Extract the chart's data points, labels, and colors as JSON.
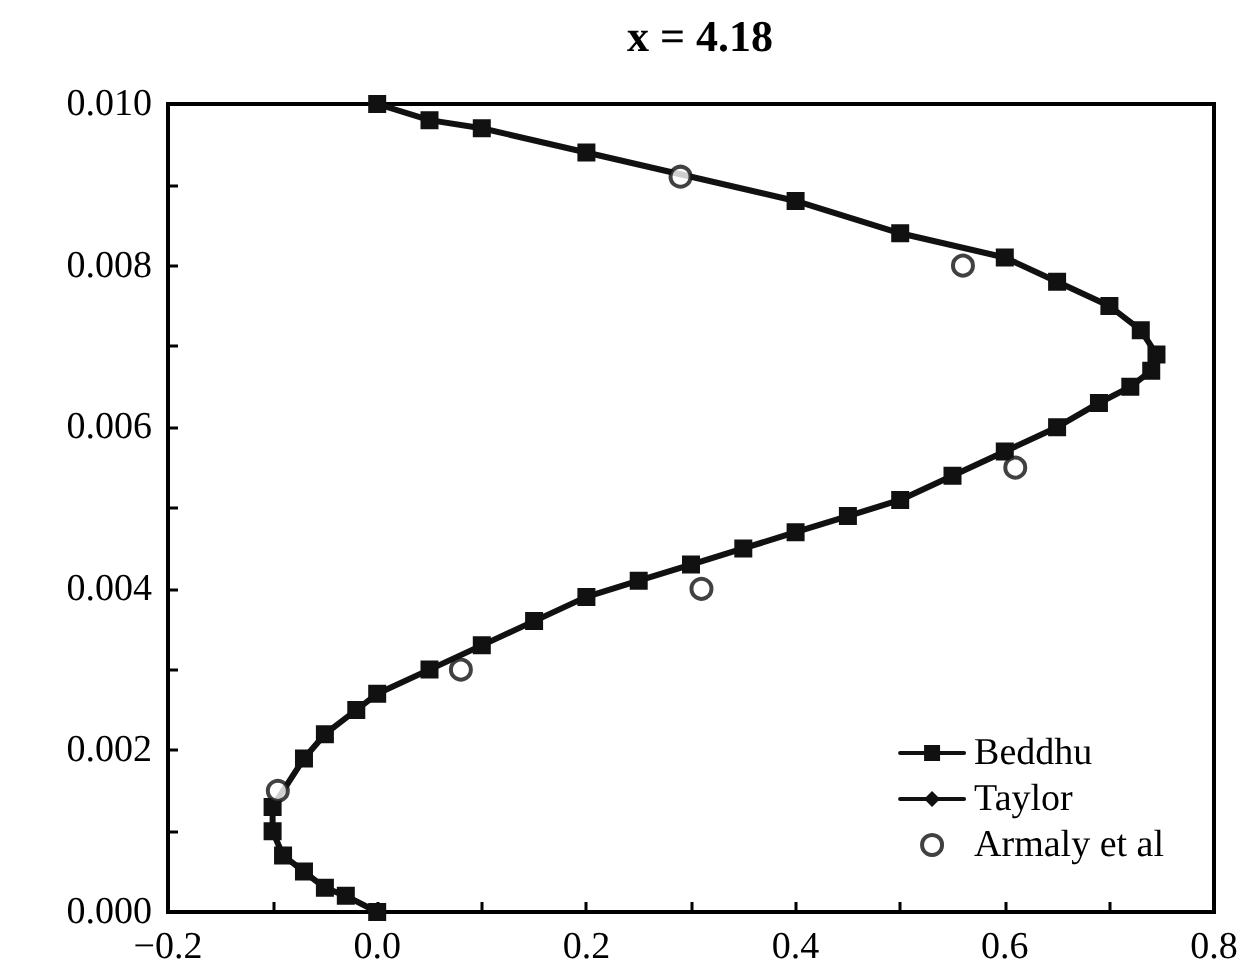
{
  "chart_data": {
    "type": "line",
    "title": "x = 4.18",
    "xlim": [
      -0.2,
      0.8
    ],
    "xticks": [
      {
        "value": -0.2,
        "label": "−0.2"
      },
      {
        "value": -0.1,
        "label": null
      },
      {
        "value": 0,
        "label": "0.0"
      },
      {
        "value": 0.1,
        "label": null
      },
      {
        "value": 0.2,
        "label": "0.2"
      },
      {
        "value": 0.3,
        "label": null
      },
      {
        "value": 0.4,
        "label": "0.4"
      },
      {
        "value": 0.5,
        "label": null
      },
      {
        "value": 0.6,
        "label": "0.6"
      },
      {
        "value": 0.7,
        "label": null
      },
      {
        "value": 0.8,
        "label": "0.8"
      }
    ],
    "ylim": [
      0,
      0.01
    ],
    "yticks": [
      {
        "value": 0,
        "label": "0.000"
      },
      {
        "value": 0.001,
        "label": null
      },
      {
        "value": 0.002,
        "label": "0.002"
      },
      {
        "value": 0.003,
        "label": null
      },
      {
        "value": 0.004,
        "label": "0.004"
      },
      {
        "value": 0.005,
        "label": null
      },
      {
        "value": 0.006,
        "label": "0.006"
      },
      {
        "value": 0.007,
        "label": null
      },
      {
        "value": 0.008,
        "label": "0.008"
      },
      {
        "value": 0.009,
        "label": null
      },
      {
        "value": 0.01,
        "label": "0.010"
      }
    ],
    "grid": false,
    "legend": "bottom right",
    "series": [
      {
        "name": "Beddhu",
        "color": "#111111",
        "marker": "square",
        "line_style": "solid",
        "x": [
          0,
          -0.03,
          -0.05,
          -0.07,
          -0.09,
          -0.1,
          -0.1,
          -0.07,
          -0.05,
          -0.02,
          0,
          0.05,
          0.1,
          0.15,
          0.2,
          0.25,
          0.3,
          0.35,
          0.4,
          0.45,
          0.5,
          0.55,
          0.6,
          0.65,
          0.69,
          0.72,
          0.74,
          0.745,
          0.73,
          0.7,
          0.65,
          0.6,
          0.5,
          0.4,
          0.2,
          0.1,
          0.05,
          0
        ],
        "values": [
          0,
          0.0002,
          0.0003,
          0.0005,
          0.0007,
          0.001,
          0.0013,
          0.0019,
          0.0022,
          0.0025,
          0.0027,
          0.003,
          0.0033,
          0.0036,
          0.0039,
          0.0041,
          0.0043,
          0.0045,
          0.0047,
          0.0049,
          0.0051,
          0.0054,
          0.0057,
          0.006,
          0.0063,
          0.0065,
          0.0067,
          0.0069,
          0.0072,
          0.0075,
          0.0078,
          0.0081,
          0.0084,
          0.0088,
          0.0094,
          0.0097,
          0.0098,
          0.01
        ]
      },
      {
        "name": "Taylor",
        "color": "#111111",
        "marker": "diamond",
        "line_style": "solid",
        "values": [
          null
        ]
      },
      {
        "name": "Armaly et al",
        "type": "scatter",
        "color": "#111111",
        "marker": "circle",
        "x": [
          0.29,
          0.56,
          0.61,
          0.31,
          0.08,
          -0.095
        ],
        "values": [
          0.0091,
          0.008,
          0.0055,
          0.004,
          0.003,
          0.0015
        ]
      }
    ]
  }
}
